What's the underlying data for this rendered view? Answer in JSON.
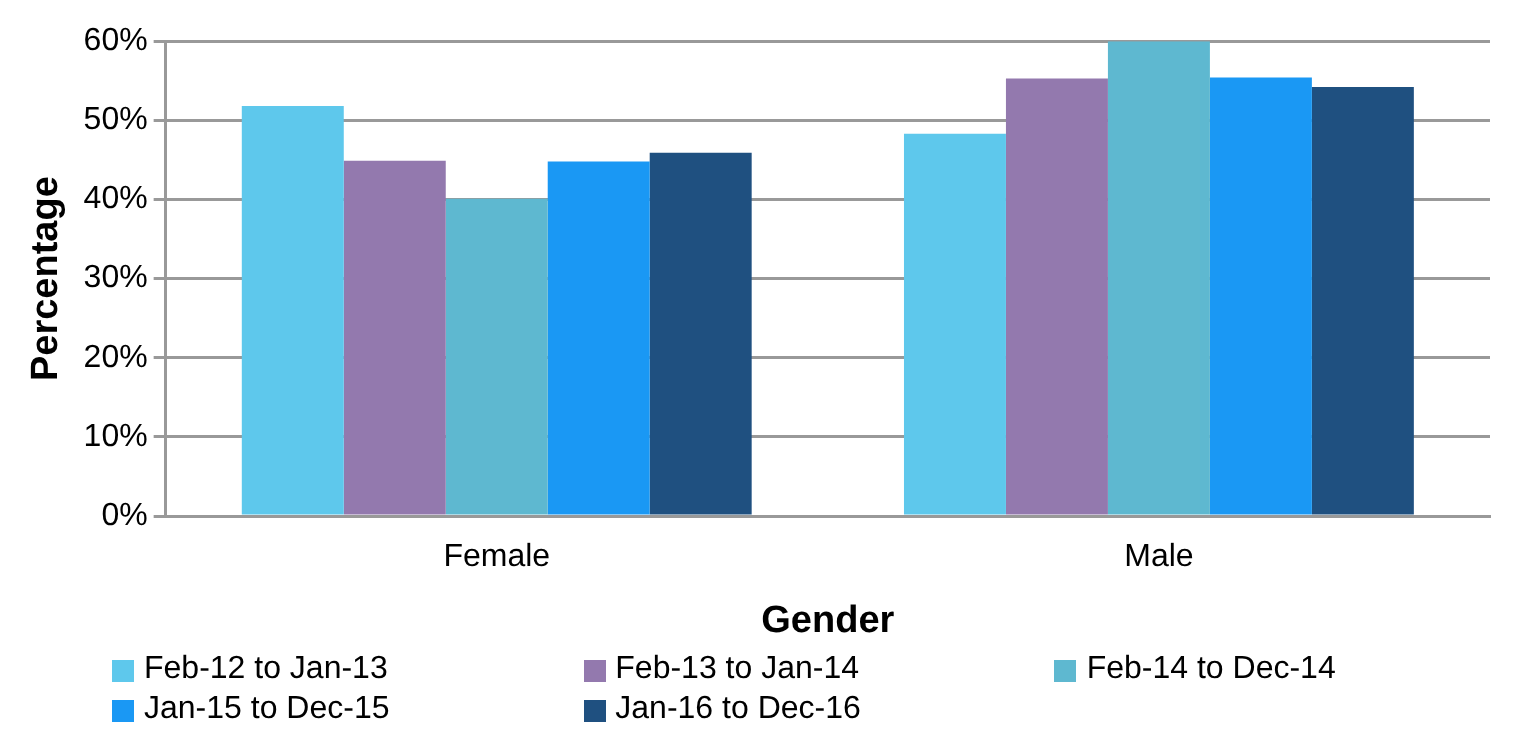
{
  "chart_data": {
    "type": "bar",
    "xlabel": "Gender",
    "ylabel": "Percentage",
    "categories": [
      "Female",
      "Male"
    ],
    "series": [
      {
        "name": "Feb-12 to Jan-13",
        "color": "#5ec8ec",
        "values": [
          51.8,
          48.3
        ]
      },
      {
        "name": "Feb-13 to Jan-14",
        "color": "#9379ae",
        "values": [
          44.9,
          55.3
        ]
      },
      {
        "name": "Feb-14 to Dec-14",
        "color": "#5eb8d0",
        "values": [
          40.1,
          60
        ]
      },
      {
        "name": "Jan-15 to Dec-15",
        "color": "#1a98f4",
        "values": [
          44.8,
          55.4
        ]
      },
      {
        "name": "Jan-16 to Dec-16",
        "color": "#1f5080",
        "values": [
          45.9,
          54.2
        ]
      }
    ],
    "ylim": [
      0,
      60
    ],
    "yticks": [
      {
        "value": 0,
        "label": "0%"
      },
      {
        "value": 10,
        "label": "10%"
      },
      {
        "value": 20,
        "label": "20%"
      },
      {
        "value": 30,
        "label": "30%"
      },
      {
        "value": 40,
        "label": "40%"
      },
      {
        "value": 50,
        "label": "50%"
      },
      {
        "value": 60,
        "label": "60%"
      }
    ],
    "grid": "y",
    "legend": "bottom"
  }
}
